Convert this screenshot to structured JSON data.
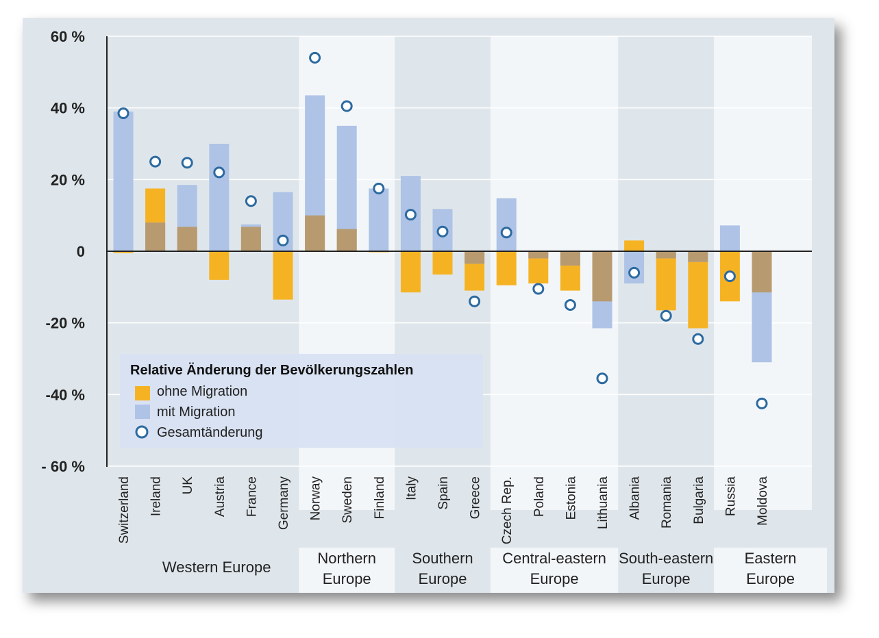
{
  "chart_data": {
    "type": "bar",
    "ylim": [
      -60,
      60
    ],
    "yticks": [
      {
        "value": 60,
        "label": "60 %"
      },
      {
        "value": 40,
        "label": "40 %"
      },
      {
        "value": 20,
        "label": "20  %"
      },
      {
        "value": 0,
        "label": "0"
      },
      {
        "value": -20,
        "label": "-20 %"
      },
      {
        "value": -40,
        "label": "-40 %"
      },
      {
        "value": -60,
        "label": "- 60 %"
      }
    ],
    "categories": [
      "Switzerland",
      "Ireland",
      "UK",
      "Austria",
      "France",
      "Germany",
      "Norway",
      "Sweden",
      "Finland",
      "Italy",
      "Spain",
      "Greece",
      "Czech Rep.",
      "Poland",
      "Estonia",
      "Lithuania",
      "Albania",
      "Romania",
      "Bulgaria",
      "Russia",
      "Moldova"
    ],
    "regions": [
      {
        "label": [
          "Western Europe"
        ],
        "start": 0,
        "end": 5
      },
      {
        "label": [
          "Northern",
          "Europe"
        ],
        "start": 6,
        "end": 8
      },
      {
        "label": [
          "Southern",
          "Europe"
        ],
        "start": 9,
        "end": 11
      },
      {
        "label": [
          "Central-eastern",
          "Europe"
        ],
        "start": 12,
        "end": 15
      },
      {
        "label": [
          "South-eastern",
          "Europe"
        ],
        "start": 16,
        "end": 18
      },
      {
        "label": [
          "Eastern",
          "Europe"
        ],
        "start": 19,
        "end": 20
      }
    ],
    "series": [
      {
        "name": "ohne Migration",
        "color": "#f5b324",
        "values": [
          -0.5,
          17.5,
          6.8,
          -8,
          6.8,
          -13.5,
          10,
          6.2,
          -0.3,
          -11.5,
          -6.5,
          -11,
          -9.5,
          -9,
          -11,
          -14,
          3,
          -16.5,
          -21.5,
          -14,
          -11.5
        ]
      },
      {
        "name": "mit Migration",
        "color": "#aec3e6",
        "values": [
          39,
          8,
          18.5,
          30,
          7.5,
          16.5,
          43.5,
          35,
          17.5,
          21,
          11.8,
          -3.5,
          14.8,
          -2,
          -4,
          -21.5,
          -9,
          -2,
          -3,
          7.2,
          -31
        ]
      },
      {
        "name": "Gesamtänderung",
        "color": "#2c6aa0",
        "values": [
          38.5,
          25,
          24.7,
          22,
          14,
          3,
          54,
          40.5,
          17.5,
          10.2,
          5.5,
          -14,
          5.2,
          -10.5,
          -15,
          -35.5,
          -6,
          -18,
          -24.5,
          -7,
          -42.5
        ]
      }
    ],
    "legend": {
      "title": "Relative Änderung der Bevölkerungszahlen",
      "placement": "bottom-left"
    },
    "overlap_color": "#b89a70"
  }
}
